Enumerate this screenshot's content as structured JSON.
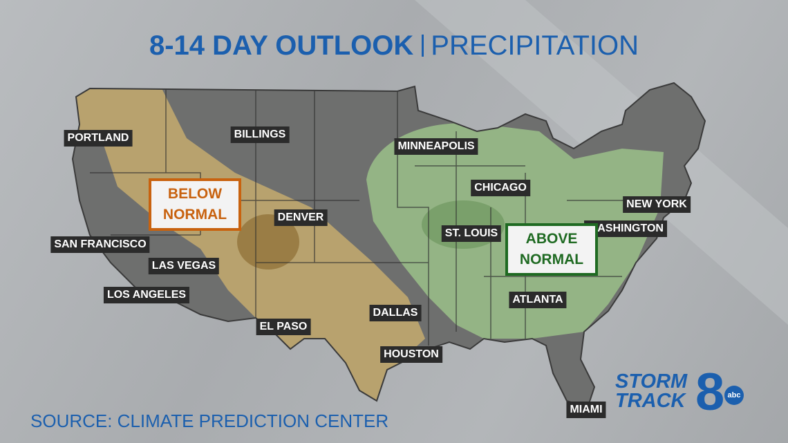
{
  "title": {
    "main": "8-14 DAY OUTLOOK",
    "sub": "PRECIPITATION"
  },
  "cities": [
    "PORTLAND",
    "BILLINGS",
    "MINNEAPOLIS",
    "CHICAGO",
    "NEW YORK",
    "WASHINGTON",
    "ST. LOUIS",
    "DENVER",
    "SAN FRANCISCO",
    "LAS VEGAS",
    "LOS ANGELES",
    "EL PASO",
    "DALLAS",
    "HOUSTON",
    "ATLANTA",
    "MIAMI"
  ],
  "regions": [
    {
      "lines": [
        "BELOW",
        "NORMAL"
      ]
    },
    {
      "lines": [
        "ABOVE",
        "NORMAL"
      ]
    }
  ],
  "source": "SOURCE: CLIMATE PREDICTION CENTER",
  "logo": {
    "line1": "STORM",
    "line2": "TRACK",
    "number": "8",
    "network": "abc"
  }
}
